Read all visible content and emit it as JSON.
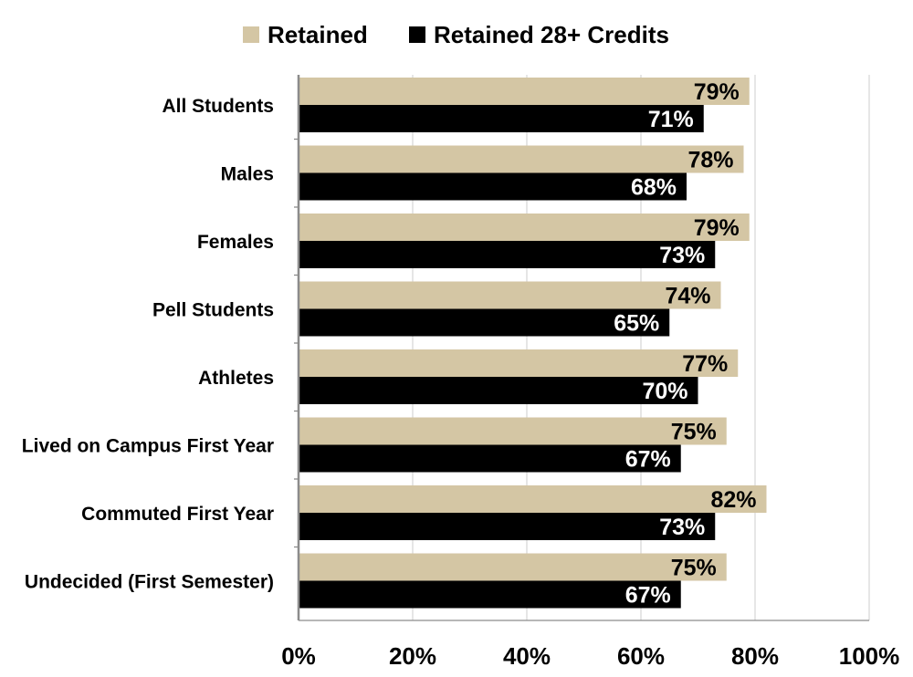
{
  "chart_data": {
    "type": "bar",
    "orientation": "horizontal",
    "categories": [
      "All Students",
      "Males",
      "Females",
      "Pell Students",
      "Athletes",
      "Lived on Campus First Year",
      "Commuted First Year",
      "Undecided (First Semester)"
    ],
    "series": [
      {
        "name": "Retained",
        "color": "#d4c6a4",
        "label_color": "#000000",
        "values": [
          79,
          78,
          79,
          74,
          77,
          75,
          82,
          75
        ],
        "labels": [
          "79%",
          "78%",
          "79%",
          "74%",
          "77%",
          "75%",
          "82%",
          "75%"
        ]
      },
      {
        "name": "Retained 28+ Credits",
        "color": "#000000",
        "label_color": "#ffffff",
        "values": [
          71,
          68,
          73,
          65,
          70,
          67,
          73,
          67
        ],
        "labels": [
          "71%",
          "68%",
          "73%",
          "65%",
          "70%",
          "67%",
          "73%",
          "67%"
        ]
      }
    ],
    "xlim": [
      0,
      100
    ],
    "xticks": [
      0,
      20,
      40,
      60,
      80,
      100
    ],
    "xtick_labels": [
      "0%",
      "20%",
      "40%",
      "60%",
      "80%",
      "100%"
    ],
    "grid": true,
    "legend_position": "top-center",
    "title": "",
    "xlabel": "",
    "ylabel": ""
  }
}
